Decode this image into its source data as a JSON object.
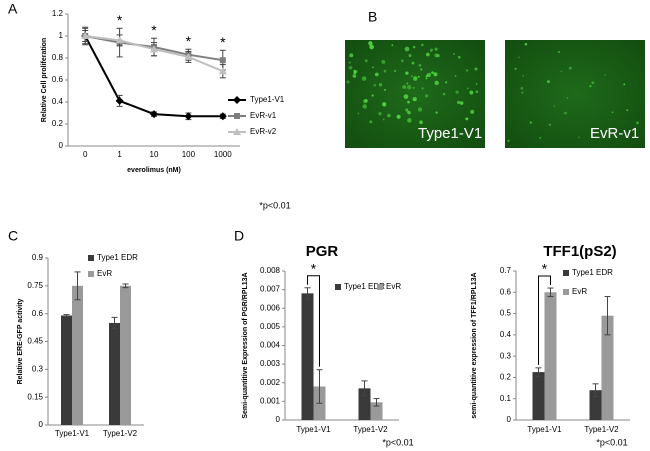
{
  "panel_labels": [
    "A",
    "B",
    "C",
    "D"
  ],
  "images": [
    {
      "label": "Type1-V1"
    },
    {
      "label": "EvR-v1"
    }
  ],
  "chart_data": [
    {
      "type": "line",
      "x_label": "everolimus (nM)",
      "y_label": "Relative Cell proliferation",
      "categories": [
        "0",
        "1",
        "10",
        "100",
        "1000"
      ],
      "series": [
        {
          "name": "Type1-V1",
          "color": "#000000",
          "marker": "diamond",
          "values": [
            1.0,
            0.41,
            0.29,
            0.27,
            0.27
          ],
          "errors": [
            0.07,
            0.05,
            0.02,
            0.03,
            0.02
          ]
        },
        {
          "name": "EvR-v1",
          "color": "#7f7f7f",
          "marker": "square",
          "values": [
            1.0,
            0.94,
            0.9,
            0.83,
            0.78
          ],
          "errors": [
            0.08,
            0.13,
            0.08,
            0.05,
            0.09
          ]
        },
        {
          "name": "EvR-v2",
          "color": "#bfbfbf",
          "marker": "triangle",
          "values": [
            1.0,
            0.96,
            0.88,
            0.81,
            0.68
          ],
          "errors": [
            0.05,
            0.05,
            0.06,
            0.05,
            0.06
          ]
        }
      ],
      "ylim": [
        0,
        1.2
      ],
      "yticks": [
        0,
        0.2,
        0.4,
        0.6,
        0.8,
        1,
        1.2
      ],
      "legend": "right",
      "significance": [
        {
          "category": "1",
          "label": "*"
        },
        {
          "category": "10",
          "label": "*"
        },
        {
          "category": "100",
          "label": "*"
        },
        {
          "category": "1000",
          "label": "*"
        }
      ],
      "note": "*p<0.01"
    },
    {
      "type": "bar",
      "y_label": "Relative ERE-GFP activity",
      "categories": [
        "Type1-V1",
        "Type1-V2"
      ],
      "series": [
        {
          "name": "Type1 EDR",
          "color": "#3a3a3a",
          "values": [
            0.59,
            0.55
          ],
          "errors": [
            0.005,
            0.03
          ]
        },
        {
          "name": "EvR",
          "color": "#9a9a9a",
          "values": [
            0.75,
            0.75
          ],
          "errors": [
            0.075,
            0.01
          ]
        }
      ],
      "ylim": [
        0,
        0.9
      ],
      "yticks": [
        0,
        0.15,
        0.3,
        0.45,
        0.6,
        0.75,
        0.9
      ],
      "legend": "top-right"
    },
    {
      "type": "bar",
      "title": "PGR",
      "y_label": "Semi-quantitive Expression of PGR/RPL13A",
      "categories": [
        "Type1-V1",
        "Type1-V2"
      ],
      "series": [
        {
          "name": "Type1 EDR",
          "color": "#3a3a3a",
          "values": [
            0.0068,
            0.0017
          ],
          "errors": [
            0.0003,
            0.0004
          ]
        },
        {
          "name": "EvR",
          "color": "#9a9a9a",
          "values": [
            0.0018,
            0.00095
          ],
          "errors": [
            0.0009,
            0.0002
          ]
        }
      ],
      "ylim": [
        0,
        0.008
      ],
      "yticks": [
        0,
        0.001,
        0.002,
        0.003,
        0.004,
        0.005,
        0.006,
        0.007,
        0.008
      ],
      "legend": "top-right",
      "significance": {
        "category": "Type1-V1",
        "label": "*"
      },
      "note": "*p<0.01"
    },
    {
      "type": "bar",
      "title": "TFF1(pS2)",
      "y_label": "semi-quantitive expression of TFF1/RPL13A",
      "categories": [
        "Type1-V1",
        "Type1-V2"
      ],
      "series": [
        {
          "name": "Type1 EDR",
          "color": "#3a3a3a",
          "values": [
            0.225,
            0.14
          ],
          "errors": [
            0.02,
            0.03
          ]
        },
        {
          "name": "EvR",
          "color": "#9a9a9a",
          "values": [
            0.6,
            0.49
          ],
          "errors": [
            0.02,
            0.09
          ]
        }
      ],
      "ylim": [
        0,
        0.7
      ],
      "yticks": [
        0,
        0.1,
        0.2,
        0.3,
        0.4,
        0.5,
        0.6,
        0.7
      ],
      "legend": "top-right",
      "significance": {
        "category": "Type1-V1",
        "label": "*"
      },
      "note": "*p<0.01"
    }
  ]
}
